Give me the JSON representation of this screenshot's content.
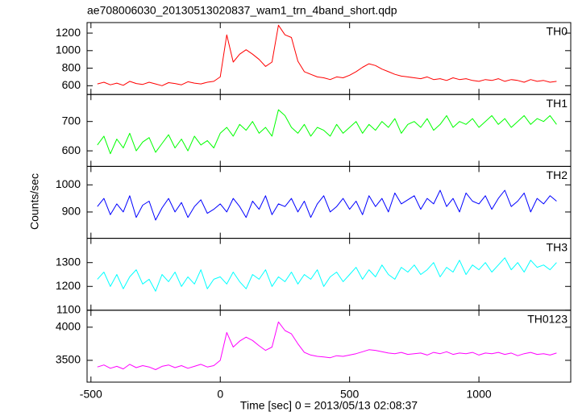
{
  "chart_data": {
    "type": "line",
    "title": "ae708006030_20130513020837_wam1_trn_4band_short.qdp",
    "xlabel": "Time [sec] 0 = 2013/05/13 02:08:37",
    "ylabel": "Counts/sec",
    "xlim": [
      -515,
      1355
    ],
    "xticks": [
      -500,
      0,
      500,
      1000
    ],
    "x": [
      -475,
      -450,
      -425,
      -400,
      -375,
      -350,
      -325,
      -300,
      -275,
      -250,
      -225,
      -200,
      -175,
      -150,
      -125,
      -100,
      -75,
      -50,
      -25,
      0,
      25,
      50,
      75,
      100,
      125,
      150,
      175,
      200,
      225,
      250,
      275,
      300,
      325,
      350,
      375,
      400,
      425,
      450,
      475,
      500,
      525,
      550,
      575,
      600,
      625,
      650,
      675,
      700,
      725,
      750,
      775,
      800,
      825,
      850,
      875,
      900,
      925,
      950,
      975,
      1000,
      1025,
      1050,
      1075,
      1100,
      1125,
      1150,
      1175,
      1200,
      1225,
      1250,
      1275,
      1300
    ],
    "series": [
      {
        "name": "TH0",
        "color": "#ff0000",
        "ylim": [
          500,
          1320
        ],
        "yticks": [
          600,
          800,
          1000,
          1200
        ],
        "values": [
          620,
          640,
          610,
          630,
          605,
          650,
          625,
          615,
          640,
          620,
          600,
          635,
          625,
          610,
          645,
          630,
          620,
          640,
          650,
          700,
          1180,
          870,
          960,
          1010,
          960,
          900,
          820,
          870,
          1290,
          1180,
          1150,
          880,
          760,
          730,
          700,
          690,
          670,
          700,
          690,
          720,
          760,
          810,
          850,
          830,
          790,
          760,
          730,
          710,
          700,
          690,
          680,
          700,
          670,
          680,
          660,
          690,
          670,
          680,
          660,
          650,
          670,
          660,
          680,
          650,
          670,
          660,
          640,
          670,
          650,
          660,
          640,
          650
        ]
      },
      {
        "name": "TH1",
        "color": "#00ff00",
        "ylim": [
          547,
          792
        ],
        "yticks": [
          600,
          700
        ],
        "values": [
          620,
          650,
          590,
          640,
          610,
          660,
          600,
          630,
          645,
          595,
          625,
          655,
          610,
          640,
          600,
          650,
          620,
          635,
          610,
          660,
          680,
          650,
          690,
          670,
          700,
          660,
          680,
          650,
          740,
          720,
          680,
          660,
          690,
          650,
          680,
          670,
          650,
          690,
          660,
          680,
          700,
          660,
          690,
          670,
          700,
          680,
          710,
          660,
          690,
          700,
          680,
          710,
          670,
          690,
          720,
          680,
          700,
          690,
          710,
          680,
          700,
          720,
          690,
          710,
          680,
          700,
          720,
          690,
          710,
          700,
          720,
          690
        ]
      },
      {
        "name": "TH2",
        "color": "#0000ff",
        "ylim": [
          803,
          1068
        ],
        "yticks": [
          900,
          1000
        ],
        "values": [
          920,
          950,
          890,
          930,
          900,
          960,
          880,
          925,
          940,
          870,
          915,
          950,
          900,
          935,
          880,
          920,
          945,
          895,
          910,
          930,
          900,
          950,
          920,
          880,
          940,
          910,
          960,
          890,
          930,
          920,
          950,
          900,
          940,
          880,
          930,
          960,
          900,
          920,
          950,
          910,
          940,
          890,
          960,
          920,
          950,
          900,
          970,
          930,
          945,
          960,
          910,
          950,
          930,
          980,
          920,
          950,
          900,
          970,
          940,
          930,
          960,
          910,
          950,
          980,
          920,
          940,
          970,
          900,
          950,
          930,
          960,
          940
        ]
      },
      {
        "name": "TH3",
        "color": "#00ffff",
        "ylim": [
          1100,
          1402
        ],
        "yticks": [
          1100,
          1200,
          1300
        ],
        "values": [
          1230,
          1260,
          1200,
          1250,
          1190,
          1240,
          1270,
          1210,
          1230,
          1180,
          1250,
          1220,
          1260,
          1200,
          1240,
          1210,
          1270,
          1190,
          1230,
          1240,
          1210,
          1260,
          1220,
          1190,
          1250,
          1230,
          1270,
          1200,
          1240,
          1220,
          1260,
          1210,
          1250,
          1230,
          1270,
          1200,
          1240,
          1260,
          1220,
          1250,
          1280,
          1230,
          1270,
          1240,
          1290,
          1250,
          1230,
          1280,
          1260,
          1290,
          1250,
          1270,
          1300,
          1240,
          1280,
          1260,
          1310,
          1250,
          1290,
          1270,
          1300,
          1260,
          1290,
          1320,
          1270,
          1300,
          1260,
          1310,
          1280,
          1290,
          1270,
          1300
        ]
      },
      {
        "name": "TH0123",
        "color": "#ff00ff",
        "ylim": [
          3171,
          4256
        ],
        "yticks": [
          3500,
          4000
        ],
        "values": [
          3400,
          3430,
          3380,
          3410,
          3370,
          3440,
          3390,
          3420,
          3400,
          3360,
          3410,
          3430,
          3390,
          3420,
          3380,
          3410,
          3440,
          3400,
          3420,
          3500,
          3920,
          3700,
          3790,
          3850,
          3800,
          3720,
          3650,
          3700,
          4080,
          3950,
          3900,
          3750,
          3620,
          3580,
          3560,
          3550,
          3540,
          3570,
          3560,
          3580,
          3600,
          3630,
          3660,
          3650,
          3630,
          3610,
          3600,
          3620,
          3590,
          3600,
          3610,
          3580,
          3620,
          3600,
          3630,
          3590,
          3610,
          3600,
          3620,
          3580,
          3610,
          3600,
          3620,
          3590,
          3610,
          3570,
          3600,
          3620,
          3590,
          3600,
          3580,
          3610
        ]
      }
    ]
  }
}
